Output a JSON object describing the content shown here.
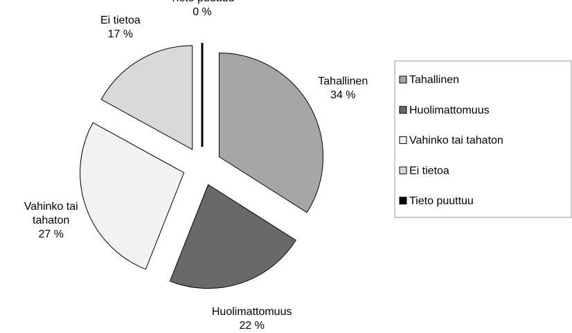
{
  "chart_data": {
    "type": "pie",
    "categories": [
      "Tahallinen",
      "Huolimattomuus",
      "Vahinko tai tahaton",
      "Ei tietoa",
      "Tieto puuttuu"
    ],
    "values": [
      34,
      22,
      27,
      17,
      0
    ],
    "value_labels": [
      "34 %",
      "22 %",
      "27 %",
      "17 %",
      "0 %"
    ],
    "colors": [
      "#a6a6a6",
      "#696969",
      "#f2f2f2",
      "#d9d9d9",
      "#000000"
    ],
    "legend": "right"
  }
}
